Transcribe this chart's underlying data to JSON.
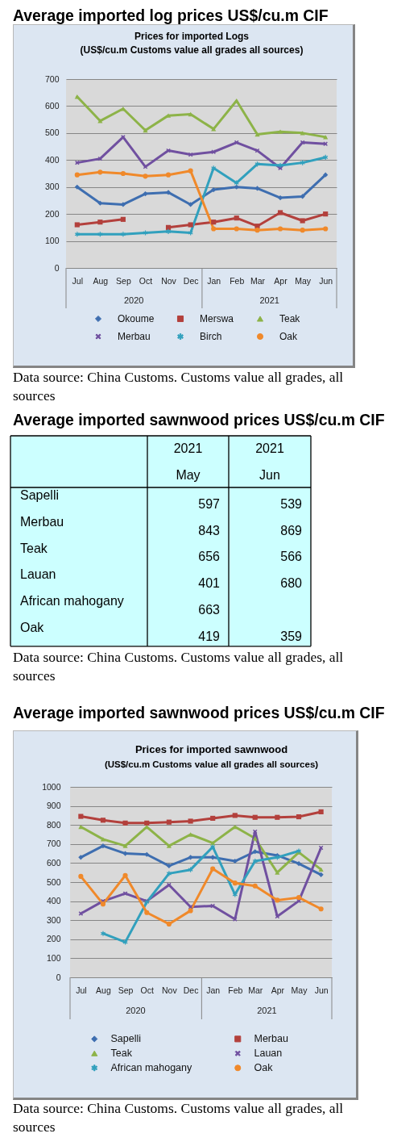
{
  "chart_data": [
    {
      "type": "line",
      "title": "Average imported log prices US$/cu.m CIF",
      "subtitle": "Prices for imported Logs",
      "annotations": [
        "(US$/cu.m Customs value all grades all sources)",
        "2020",
        "2021",
        "Data source: China Customs. Customs value all grades, all sources"
      ],
      "x": [
        "2020-07",
        "2020-08",
        "2020-09",
        "2020-10",
        "2020-11",
        "2020-12",
        "2021-01",
        "2021-02",
        "2021-03",
        "2021-04",
        "2021-05",
        "2021-06"
      ],
      "xlim": [
        "2020-06-16",
        "2021-06-16"
      ],
      "xticks": [
        {
          "value": "2020-07",
          "label": "Jul"
        },
        {
          "value": "2020-08",
          "label": "Aug"
        },
        {
          "value": "2020-09",
          "label": "Sep"
        },
        {
          "value": "2020-10",
          "label": "Oct"
        },
        {
          "value": "2020-11",
          "label": "Nov"
        },
        {
          "value": "2020-12",
          "label": "Dec"
        },
        {
          "value": "2021-01",
          "label": "Jan"
        },
        {
          "value": "2021-02",
          "label": "Feb"
        },
        {
          "value": "2021-03",
          "label": "Mar"
        },
        {
          "value": "2021-04",
          "label": "Apr"
        },
        {
          "value": "2021-05",
          "label": "May"
        },
        {
          "value": "2021-06",
          "label": "Jun"
        }
      ],
      "ylim": [
        0,
        700
      ],
      "yticks": [
        0,
        100,
        200,
        300,
        400,
        500,
        600,
        700
      ],
      "grid": "y",
      "legend": "bottom",
      "line_style": "solid",
      "series": [
        {
          "name": "Okoume",
          "color": "#3e6eb0",
          "marker": "diamond",
          "values": [
            300,
            240,
            235,
            275,
            280,
            235,
            290,
            300,
            295,
            260,
            265,
            345
          ]
        },
        {
          "name": "Merswa",
          "color": "#b3403c",
          "marker": "square",
          "values": [
            160,
            170,
            180,
            null,
            150,
            160,
            170,
            185,
            155,
            205,
            175,
            200
          ]
        },
        {
          "name": "Teak",
          "color": "#8db348",
          "marker": "triangle",
          "values": [
            635,
            545,
            590,
            510,
            565,
            570,
            515,
            620,
            495,
            505,
            500,
            485
          ]
        },
        {
          "name": "Merbau",
          "color": "#7050a0",
          "marker": "cross",
          "values": [
            390,
            405,
            485,
            375,
            435,
            420,
            430,
            465,
            435,
            370,
            465,
            460
          ]
        },
        {
          "name": "Birch",
          "color": "#31a0bd",
          "marker": "star",
          "values": [
            125,
            125,
            125,
            130,
            135,
            130,
            370,
            315,
            385,
            380,
            390,
            410
          ]
        },
        {
          "name": "Oak",
          "color": "#f0892a",
          "marker": "circle",
          "values": [
            345,
            355,
            350,
            340,
            345,
            360,
            145,
            145,
            140,
            145,
            140,
            145
          ]
        }
      ]
    },
    {
      "type": "heatmap",
      "title": "Average imported sawnwood prices US$/cu.m CIF",
      "color": "#ccffff",
      "categories": [
        "2021 May",
        "2021 Jun"
      ],
      "y_categories": [
        "Sapelli",
        "Merbau",
        "Teak",
        "Lauan",
        "African mahogany",
        "Oak"
      ],
      "cells": [
        [
          597,
          539
        ],
        [
          843,
          869
        ],
        [
          656,
          566
        ],
        [
          401,
          680
        ],
        [
          663,
          null
        ],
        [
          419,
          359
        ]
      ],
      "data_labels": true,
      "annotations": [
        "Data source: China Customs. Customs value all grades, all sources"
      ]
    },
    {
      "type": "line",
      "title": "Average imported sawnwood prices US$/cu.m CIF",
      "subtitle": "Prices for imported sawnwood",
      "annotations": [
        "(US$/cu.m Customs value all grades all sources)",
        "2020",
        "2021",
        "Data source: China Customs. Customs value all grades, all sources"
      ],
      "x": [
        "2020-07",
        "2020-08",
        "2020-09",
        "2020-10",
        "2020-11",
        "2020-12",
        "2021-01",
        "2021-02",
        "2021-03",
        "2021-04",
        "2021-05",
        "2021-06"
      ],
      "xlim": [
        "2020-06-16",
        "2021-06-16"
      ],
      "xticks": [
        {
          "value": "2020-07",
          "label": "Jul"
        },
        {
          "value": "2020-08",
          "label": "Aug"
        },
        {
          "value": "2020-09",
          "label": "Sep"
        },
        {
          "value": "2020-10",
          "label": "Oct"
        },
        {
          "value": "2020-11",
          "label": "Nov"
        },
        {
          "value": "2020-12",
          "label": "Dec"
        },
        {
          "value": "2021-01",
          "label": "Jan"
        },
        {
          "value": "2021-02",
          "label": "Feb"
        },
        {
          "value": "2021-03",
          "label": "Mar"
        },
        {
          "value": "2021-04",
          "label": "Apr"
        },
        {
          "value": "2021-05",
          "label": "May"
        },
        {
          "value": "2021-06",
          "label": "Jun"
        }
      ],
      "ylim": [
        0,
        1000
      ],
      "yticks": [
        0,
        100,
        200,
        300,
        400,
        500,
        600,
        700,
        800,
        900,
        1000
      ],
      "grid": "y",
      "legend": "bottom",
      "line_style": "solid",
      "series": [
        {
          "name": "Sapelli",
          "color": "#3e6eb0",
          "marker": "diamond",
          "values": [
            630,
            690,
            650,
            645,
            585,
            630,
            630,
            610,
            660,
            640,
            597,
            539
          ]
        },
        {
          "name": "Merbau",
          "color": "#b3403c",
          "marker": "square",
          "values": [
            845,
            825,
            810,
            810,
            815,
            820,
            835,
            850,
            840,
            840,
            843,
            869
          ]
        },
        {
          "name": "Teak",
          "color": "#8db348",
          "marker": "triangle",
          "values": [
            790,
            725,
            690,
            790,
            690,
            750,
            705,
            790,
            730,
            550,
            656,
            566
          ]
        },
        {
          "name": "Lauan",
          "color": "#7050a0",
          "marker": "cross",
          "values": [
            335,
            400,
            440,
            400,
            485,
            370,
            375,
            305,
            765,
            320,
            401,
            680
          ]
        },
        {
          "name": "African mahogany",
          "color": "#31a0bd",
          "marker": "star",
          "values": [
            null,
            230,
            185,
            395,
            545,
            565,
            685,
            435,
            610,
            630,
            663,
            null
          ]
        },
        {
          "name": "Oak",
          "color": "#f0892a",
          "marker": "circle",
          "values": [
            530,
            385,
            535,
            340,
            280,
            350,
            570,
            495,
            480,
            405,
            419,
            359
          ]
        }
      ]
    }
  ]
}
